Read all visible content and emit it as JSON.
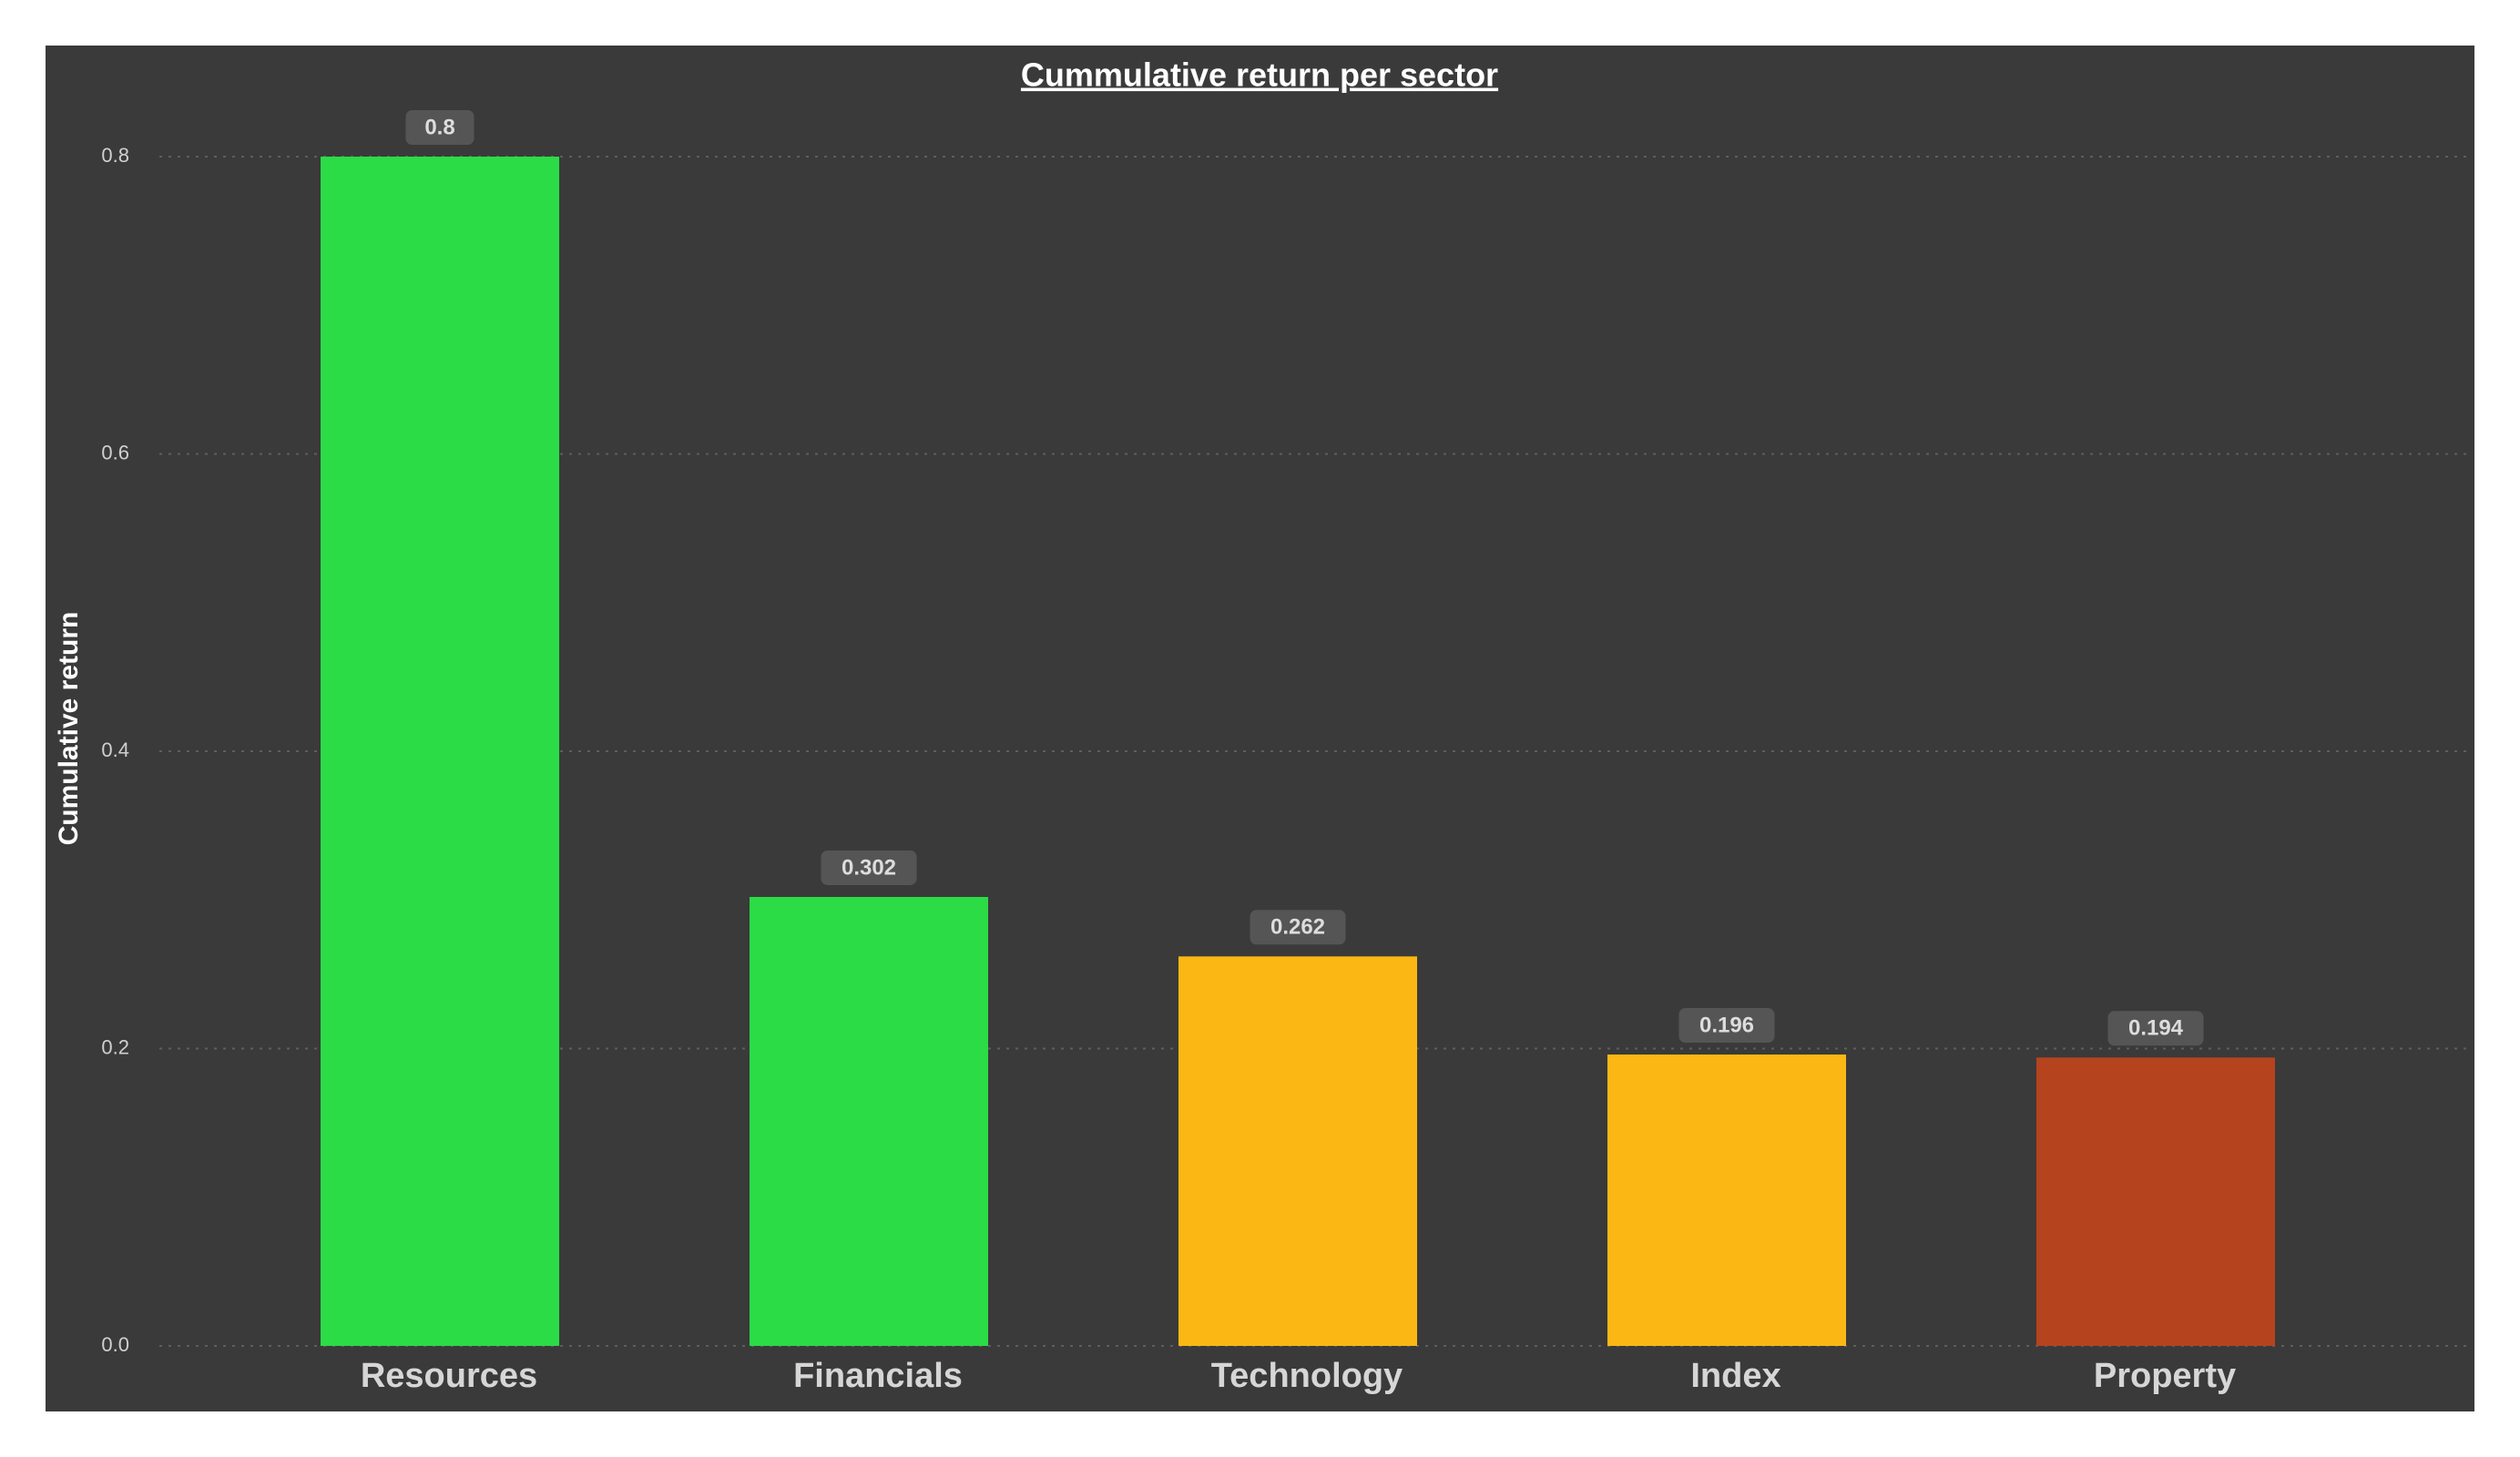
{
  "chart_data": {
    "type": "bar",
    "title": "Cummulative return per sector",
    "xlabel": "",
    "ylabel": "Cumulative return",
    "categories": [
      "Resources",
      "Financials",
      "Technology",
      "Index",
      "Property"
    ],
    "values": [
      0.8,
      0.302,
      0.262,
      0.196,
      0.194
    ],
    "data_labels": [
      "0.8",
      "0.302",
      "0.262",
      "0.196",
      "0.194"
    ],
    "bar_colors": [
      "#2bdc46",
      "#2bdc46",
      "#fbb814",
      "#fbb814",
      "#b5431d"
    ],
    "ylim": [
      0,
      0.8
    ],
    "yticks": [
      0.0,
      0.2,
      0.4,
      0.6,
      0.8
    ],
    "ytick_labels": [
      "0.0",
      "0.2",
      "0.4",
      "0.6",
      "0.8"
    ],
    "grid": true,
    "legend": "none",
    "background_color": "#3a3a3a"
  }
}
